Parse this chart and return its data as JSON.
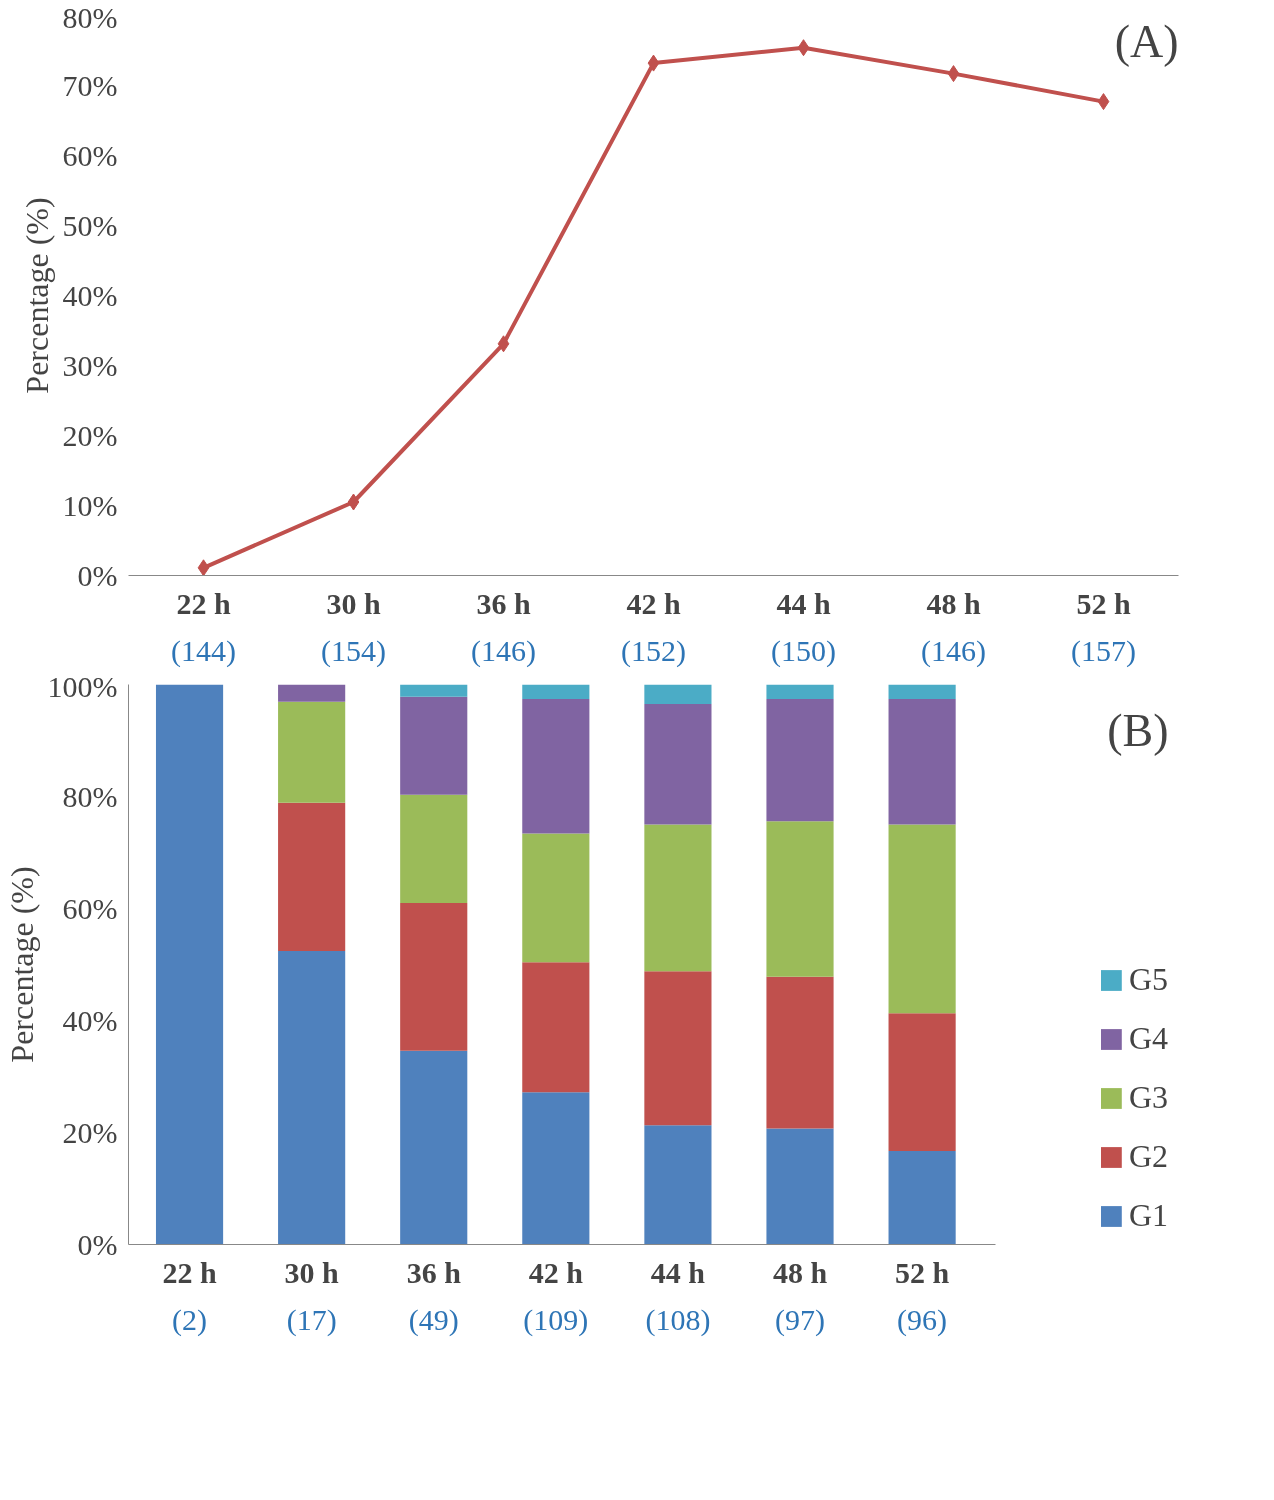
{
  "chart_data": [
    {
      "type": "line",
      "categories": [
        "22 h\n(144)",
        "30 h\n(154)",
        "36 h\n(146)",
        "42 h\n(152)",
        "44 h\n(150)",
        "48 h\n(146)",
        "52 h\n(157)"
      ],
      "series": [
        {
          "color": "#c0504d",
          "values": [
            1.1,
            10.5,
            33.1,
            73.2,
            75.4,
            71.7,
            67.7
          ]
        }
      ],
      "ylabel": "Percentage (%)",
      "ylim": [
        0,
        80
      ],
      "yticks": [
        {
          "value": 0,
          "label": "0%"
        },
        {
          "value": 10,
          "label": "10%"
        },
        {
          "value": 20,
          "label": "20%"
        },
        {
          "value": 30,
          "label": "30%"
        },
        {
          "value": 40,
          "label": "40%"
        },
        {
          "value": 50,
          "label": "50%"
        },
        {
          "value": 60,
          "label": "60%"
        },
        {
          "value": 70,
          "label": "70%"
        },
        {
          "value": 80,
          "label": "80%"
        }
      ],
      "marker": "diamond",
      "line_style": "solid",
      "grid": false,
      "legend": false,
      "annotations": [
        "(A)"
      ]
    },
    {
      "type": "bar",
      "stacked": true,
      "categories": [
        "22 h\n(2)",
        "30 h\n(17)",
        "36 h\n(49)",
        "42 h\n(109)",
        "44 h\n(108)",
        "48 h\n(97)",
        "52 h\n(96)"
      ],
      "series": [
        {
          "name": "G1",
          "color": "#4f81bd",
          "values": [
            100,
            52.4,
            34.6,
            27.2,
            21.3,
            20.7,
            16.7
          ]
        },
        {
          "name": "G2",
          "color": "#c0504d",
          "values": [
            0,
            26.5,
            26.4,
            23.2,
            27.5,
            27.1,
            24.6
          ]
        },
        {
          "name": "G3",
          "color": "#9bbb59",
          "values": [
            0,
            18.0,
            19.3,
            23.0,
            26.2,
            27.8,
            33.7
          ]
        },
        {
          "name": "G4",
          "color": "#8064a2",
          "values": [
            0,
            3.1,
            17.5,
            24.0,
            21.5,
            21.8,
            22.4
          ]
        },
        {
          "name": "G5",
          "color": "#4bacc6",
          "values": [
            0,
            0,
            2.2,
            2.6,
            3.5,
            2.6,
            2.6
          ]
        }
      ],
      "ylabel": "Percentage (%)",
      "ylim": [
        0,
        100
      ],
      "yticks": [
        {
          "value": 0,
          "label": "0%"
        },
        {
          "value": 20,
          "label": "20%"
        },
        {
          "value": 40,
          "label": "40%"
        },
        {
          "value": 60,
          "label": "60%"
        },
        {
          "value": 80,
          "label": "80%"
        },
        {
          "value": 100,
          "label": "100%"
        }
      ],
      "grid": false,
      "legend": "right",
      "annotations": [
        "(B)"
      ]
    }
  ]
}
